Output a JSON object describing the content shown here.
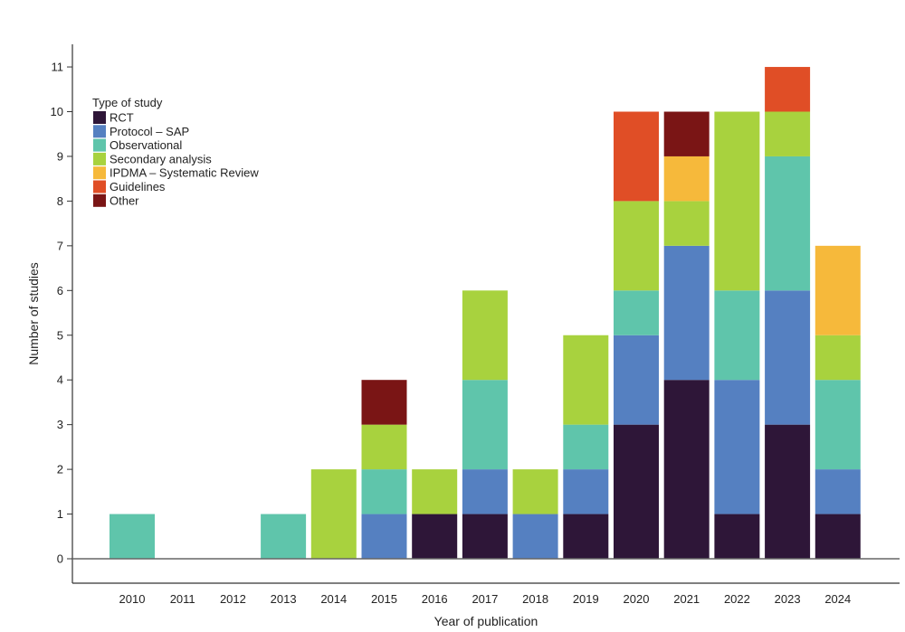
{
  "chart_data": {
    "type": "bar",
    "stacked": true,
    "title": "",
    "xlabel": "Year of publication",
    "ylabel": "Number of studies",
    "ylim": [
      0,
      11
    ],
    "yticks": [
      0,
      1,
      2,
      3,
      4,
      5,
      6,
      7,
      8,
      9,
      10,
      11
    ],
    "categories": [
      "2010",
      "2011",
      "2012",
      "2013",
      "2014",
      "2015",
      "2016",
      "2017",
      "2018",
      "2019",
      "2020",
      "2021",
      "2022",
      "2023",
      "2024"
    ],
    "legend_title": "Type of study",
    "legend_position": "top-left",
    "series": [
      {
        "name": "RCT",
        "color": "#2e1638",
        "values": [
          0,
          0,
          0,
          0,
          0,
          0,
          1,
          1,
          0,
          1,
          3,
          4,
          1,
          3,
          1
        ]
      },
      {
        "name": "Protocol – SAP",
        "color": "#5580c1",
        "values": [
          0,
          0,
          0,
          0,
          0,
          1,
          0,
          1,
          1,
          1,
          2,
          3,
          3,
          3,
          1
        ]
      },
      {
        "name": "Observational",
        "color": "#5fc5ab",
        "values": [
          1,
          0,
          0,
          1,
          0,
          1,
          0,
          2,
          0,
          1,
          1,
          0,
          2,
          3,
          2
        ]
      },
      {
        "name": "Secondary analysis",
        "color": "#a8d23e",
        "values": [
          0,
          0,
          0,
          0,
          2,
          1,
          1,
          2,
          1,
          2,
          2,
          1,
          4,
          1,
          1
        ]
      },
      {
        "name": "IPDMA – Systematic Review",
        "color": "#f6b93b",
        "values": [
          0,
          0,
          0,
          0,
          0,
          0,
          0,
          0,
          0,
          0,
          0,
          1,
          0,
          0,
          2
        ]
      },
      {
        "name": "Guidelines",
        "color": "#e04e26",
        "values": [
          0,
          0,
          0,
          0,
          0,
          0,
          0,
          0,
          0,
          0,
          2,
          0,
          0,
          1,
          0
        ]
      },
      {
        "name": "Other",
        "color": "#7a1515",
        "values": [
          0,
          0,
          0,
          0,
          0,
          1,
          0,
          0,
          0,
          0,
          0,
          1,
          0,
          0,
          0
        ]
      }
    ]
  }
}
